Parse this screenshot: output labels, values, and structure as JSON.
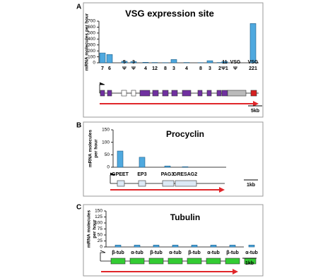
{
  "chart_data": [
    {
      "type": "bar",
      "panel": "A",
      "title": "VSG expression site",
      "y_label": [
        "mRNA molecules per hour"
      ],
      "categories": [
        [
          "7"
        ],
        [
          "6"
        ],
        [
          "5",
          "Ψ"
        ],
        [
          "3",
          "Ψ"
        ],
        [
          "4"
        ],
        [
          "12"
        ],
        [
          "8"
        ],
        [
          "3"
        ],
        [
          "4"
        ],
        [
          "8"
        ],
        [
          "3"
        ],
        [
          "2"
        ],
        [
          "11",
          "Ψ1"
        ],
        [
          "VSG",
          "Ψ"
        ],
        [
          "VSG",
          "221"
        ]
      ],
      "values": [
        165,
        140,
        25,
        20,
        8,
        5,
        3,
        55,
        5,
        3,
        35,
        5,
        20,
        0,
        660
      ],
      "color": "#4fa9df",
      "ylim": [
        0,
        700
      ],
      "yticks": [
        0,
        100,
        200,
        300,
        400,
        500,
        600,
        700
      ],
      "scale_label": "5kb"
    },
    {
      "type": "bar",
      "panel": "B",
      "title": "Procyclin",
      "y_label": [
        "mRNA molecules",
        "per hour"
      ],
      "categories": [
        [
          "GPEET"
        ],
        [
          "EP3"
        ],
        [
          "PAG3"
        ],
        [
          "GRESAG2"
        ]
      ],
      "values": [
        65,
        40,
        5,
        2
      ],
      "color": "#4fa9df",
      "ylim": [
        0,
        150
      ],
      "yticks": [
        0,
        50,
        100,
        150
      ],
      "scale_label": "1kb"
    },
    {
      "type": "bar",
      "panel": "C",
      "title": "Tubulin",
      "y_label": [
        "mRNA molecules",
        "per hour"
      ],
      "categories": [
        [
          "β-tub"
        ],
        [
          "α-tub"
        ],
        [
          "β-tub"
        ],
        [
          "α-tub"
        ],
        [
          "β-tub"
        ],
        [
          "α-tub"
        ],
        [
          "β-tub"
        ],
        [
          "α-tub"
        ]
      ],
      "values": [
        8,
        8,
        8,
        8,
        8,
        8,
        8,
        8
      ],
      "color": "#4fa9df",
      "ylim": [
        0,
        150
      ],
      "yticks": [
        0,
        25,
        50,
        75,
        100,
        125,
        150
      ],
      "scale_label": "1kb"
    }
  ]
}
